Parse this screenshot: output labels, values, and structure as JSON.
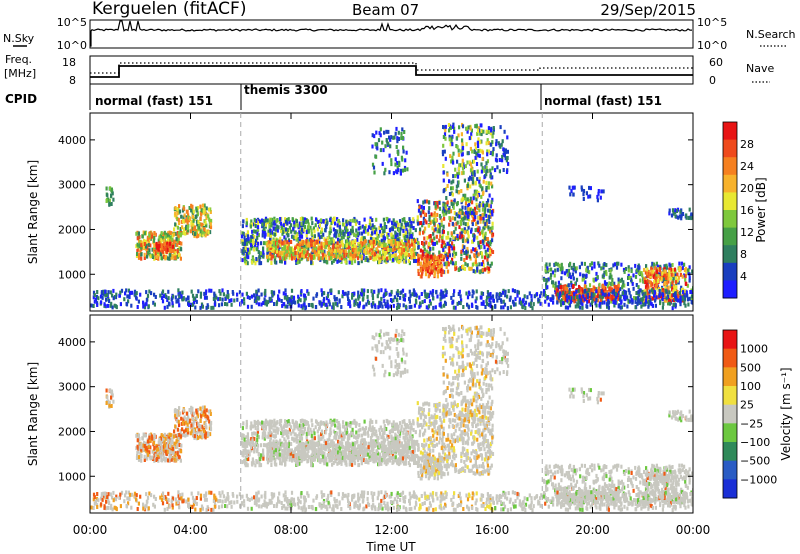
{
  "header": {
    "title": "Kerguelen (fitACF)",
    "beam": "Beam 07",
    "date": "29/Sep/2015"
  },
  "top_panels": {
    "nsky_label": "N.Sky",
    "nsearch_label": "N.Search",
    "nsky_ticks": [
      "10^5",
      "10^0"
    ],
    "nsearch_ticks": [
      "10^5",
      "10^0"
    ],
    "freq_label": "Freq.",
    "freq_unit": "[MHz]",
    "freq_ticks": [
      "18",
      "8"
    ],
    "nave_label": "Nave",
    "nave_ticks": [
      "60",
      "0"
    ],
    "cpid_label": "CPID",
    "cpid_segments": [
      {
        "label": "normal (fast) 151",
        "start_h": 0,
        "end_h": 6
      },
      {
        "label": "themis 3300",
        "start_h": 6,
        "end_h": 18
      },
      {
        "label": "normal (fast) 151",
        "start_h": 18,
        "end_h": 24
      }
    ]
  },
  "colorbars": {
    "power": {
      "label": "Power [dB]",
      "ticks": [
        "28",
        "24",
        "20",
        "16",
        "12",
        "8",
        "4"
      ],
      "colors": [
        "#1e1eff",
        "#1a3fbf",
        "#2f7f5f",
        "#46a046",
        "#7ec83c",
        "#e8e832",
        "#f7b22c",
        "#f58020",
        "#ef4a1c",
        "#e81414"
      ]
    },
    "velocity": {
      "label": "Velocity [m s⁻¹]",
      "ticks": [
        "1000",
        "500",
        "100",
        "25",
        "−25",
        "−100",
        "−500",
        "−1000"
      ],
      "colors": [
        "#1a2fd6",
        "#2a5cc4",
        "#2f8a5a",
        "#6cc840",
        "#c8c8c0",
        "#f0e040",
        "#f0a020",
        "#f05a14",
        "#e81414"
      ]
    }
  },
  "chart_data": [
    {
      "type": "heatmap",
      "name": "power",
      "ylabel": "Slant Range [km]",
      "yticks": [
        "4000",
        "3000",
        "2000",
        "1000"
      ],
      "ylim": [
        180,
        4600
      ],
      "xlim": [
        0,
        24
      ],
      "xticks": [
        "00:00",
        "04:00",
        "08:00",
        "12:00",
        "16:00",
        "20:00",
        "00:00"
      ],
      "mode_change_hours": [
        6,
        13,
        18
      ]
    },
    {
      "type": "heatmap",
      "name": "velocity",
      "ylabel": "Slant Range [km]",
      "yticks": [
        "4000",
        "3000",
        "2000",
        "1000"
      ],
      "ylim": [
        180,
        4600
      ],
      "xlim": [
        0,
        24
      ],
      "xticks": [
        "00:00",
        "04:00",
        "08:00",
        "12:00",
        "16:00",
        "20:00",
        "00:00"
      ],
      "xlabel": "Time UT",
      "mode_change_hours": [
        6,
        13,
        18
      ]
    }
  ]
}
